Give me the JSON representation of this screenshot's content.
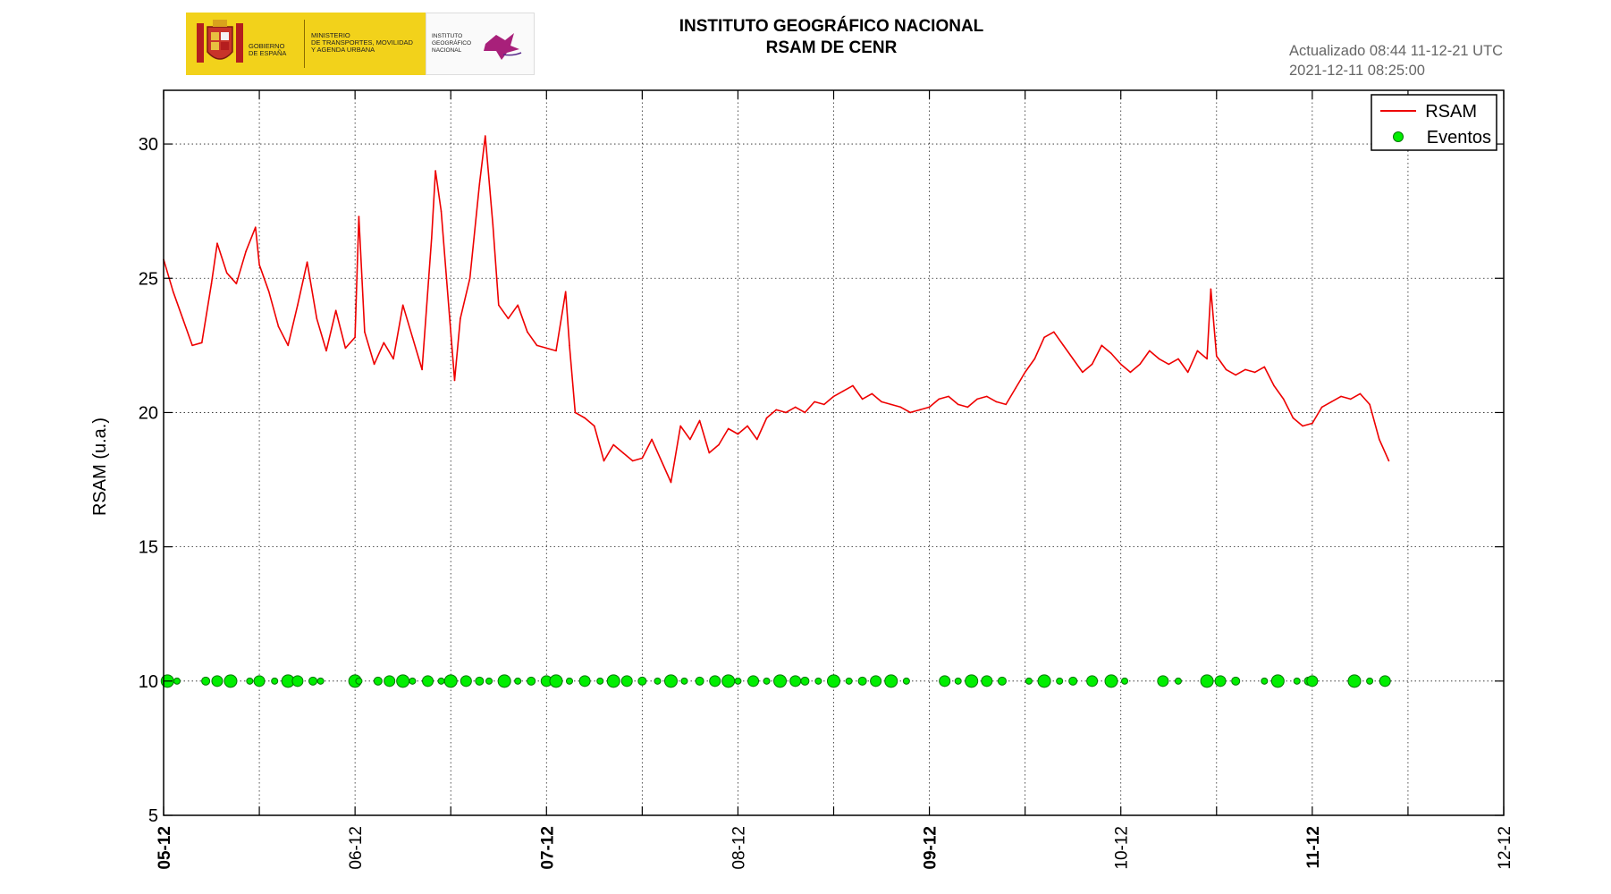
{
  "header": {
    "logo_gov_line1": "GOBIERNO",
    "logo_gov_line2": "DE ESPAÑA",
    "logo_ministry": "MINISTERIO\nDE TRANSPORTES, MOVILIDAD\nY AGENDA URBANA",
    "logo_ign": "INSTITUTO\nGEOGRÁFICO\nNACIONAL",
    "title_line1": "INSTITUTO GEOGRÁFICO NACIONAL",
    "title_line2": "RSAM DE CENR",
    "updated": "Actualizado 08:44 11-12-21 UTC",
    "timestamp": "2021-12-11 08:25:00"
  },
  "chart_data": {
    "type": "line",
    "title": "RSAM DE CENR",
    "ylabel": "RSAM (u.a.)",
    "xlabel": "",
    "ylim": [
      5,
      32
    ],
    "xlim": [
      0,
      7
    ],
    "x_tick_labels": [
      "05-12",
      "06-12",
      "07-12",
      "08-12",
      "09-12",
      "10-12",
      "11-12",
      "12-12"
    ],
    "bold_tick_labels": [
      "05-12",
      "07-12",
      "09-12",
      "11-12"
    ],
    "y_ticks": [
      5,
      10,
      15,
      20,
      25,
      30
    ],
    "grid": true,
    "legend": "top-right",
    "colors": {
      "rsam": "#ee0000",
      "eventos": "#00ee00",
      "eventos_edge": "#007700"
    },
    "series": [
      {
        "name": "RSAM",
        "style": "line",
        "x": [
          0,
          0.05,
          0.1,
          0.15,
          0.2,
          0.25,
          0.28,
          0.33,
          0.38,
          0.43,
          0.48,
          0.5,
          0.55,
          0.6,
          0.65,
          0.7,
          0.75,
          0.8,
          0.85,
          0.9,
          0.95,
          1.0,
          1.02,
          1.05,
          1.1,
          1.15,
          1.2,
          1.25,
          1.3,
          1.35,
          1.4,
          1.42,
          1.45,
          1.5,
          1.52,
          1.55,
          1.6,
          1.65,
          1.68,
          1.72,
          1.75,
          1.8,
          1.85,
          1.9,
          1.95,
          2.0,
          2.05,
          2.1,
          2.12,
          2.15,
          2.2,
          2.25,
          2.3,
          2.35,
          2.4,
          2.45,
          2.5,
          2.55,
          2.6,
          2.65,
          2.7,
          2.75,
          2.8,
          2.85,
          2.9,
          2.95,
          3.0,
          3.05,
          3.1,
          3.15,
          3.2,
          3.25,
          3.3,
          3.35,
          3.4,
          3.45,
          3.5,
          3.55,
          3.6,
          3.65,
          3.7,
          3.75,
          3.8,
          3.85,
          3.9,
          3.95,
          4.0,
          4.05,
          4.1,
          4.15,
          4.2,
          4.25,
          4.3,
          4.35,
          4.4,
          4.45,
          4.5,
          4.55,
          4.6,
          4.65,
          4.7,
          4.75,
          4.8,
          4.85,
          4.9,
          4.95,
          5.0,
          5.05,
          5.1,
          5.15,
          5.2,
          5.25,
          5.3,
          5.35,
          5.4,
          5.45,
          5.47,
          5.5,
          5.55,
          5.6,
          5.65,
          5.7,
          5.75,
          5.8,
          5.85,
          5.9,
          5.95,
          6.0,
          6.05,
          6.1,
          6.15,
          6.2,
          6.25,
          6.3,
          6.35,
          6.4
        ],
        "y": [
          25.7,
          24.5,
          23.5,
          22.5,
          22.6,
          24.8,
          26.3,
          25.2,
          24.8,
          26.0,
          26.9,
          25.5,
          24.5,
          23.2,
          22.5,
          24.0,
          25.6,
          23.5,
          22.3,
          23.8,
          22.4,
          22.8,
          27.3,
          23.0,
          21.8,
          22.6,
          22.0,
          24.0,
          22.8,
          21.6,
          26.5,
          29.0,
          27.5,
          23.0,
          21.2,
          23.5,
          25.0,
          28.5,
          30.3,
          27.0,
          24.0,
          23.5,
          24.0,
          23.0,
          22.5,
          22.4,
          22.3,
          24.5,
          22.5,
          20.0,
          19.8,
          19.5,
          18.2,
          18.8,
          18.5,
          18.2,
          18.3,
          19.0,
          18.2,
          17.4,
          19.5,
          19.0,
          19.7,
          18.5,
          18.8,
          19.4,
          19.2,
          19.5,
          19.0,
          19.8,
          20.1,
          20.0,
          20.2,
          20.0,
          20.4,
          20.3,
          20.6,
          20.8,
          21.0,
          20.5,
          20.7,
          20.4,
          20.3,
          20.2,
          20.0,
          20.1,
          20.2,
          20.5,
          20.6,
          20.3,
          20.2,
          20.5,
          20.6,
          20.4,
          20.3,
          20.9,
          21.5,
          22.0,
          22.8,
          23.0,
          22.5,
          22.0,
          21.5,
          21.8,
          22.5,
          22.2,
          21.8,
          21.5,
          21.8,
          22.3,
          22.0,
          21.8,
          22.0,
          21.5,
          22.3,
          22.0,
          24.6,
          22.1,
          21.6,
          21.4,
          21.6,
          21.5,
          21.7,
          21.0,
          20.5,
          19.8,
          19.5,
          19.6,
          20.2,
          20.4,
          20.6,
          20.5,
          20.7,
          20.3,
          19.0,
          18.2
        ]
      },
      {
        "name": "Eventos",
        "style": "scatter",
        "x": [
          0.02,
          0.07,
          0.22,
          0.28,
          0.35,
          0.45,
          0.5,
          0.58,
          0.65,
          0.7,
          0.78,
          0.82,
          1.0,
          1.02,
          1.12,
          1.18,
          1.25,
          1.3,
          1.38,
          1.45,
          1.5,
          1.58,
          1.65,
          1.7,
          1.78,
          1.85,
          1.92,
          2.0,
          2.05,
          2.12,
          2.2,
          2.28,
          2.35,
          2.42,
          2.5,
          2.58,
          2.65,
          2.72,
          2.8,
          2.88,
          2.95,
          3.0,
          3.08,
          3.15,
          3.22,
          3.3,
          3.35,
          3.42,
          3.5,
          3.58,
          3.65,
          3.72,
          3.8,
          3.88,
          4.08,
          4.15,
          4.22,
          4.3,
          4.38,
          4.52,
          4.6,
          4.68,
          4.75,
          4.85,
          4.95,
          5.02,
          5.22,
          5.3,
          5.45,
          5.52,
          5.6,
          5.75,
          5.82,
          5.92,
          5.98,
          6.0,
          6.22,
          6.3,
          6.38
        ],
        "y": [
          10,
          10,
          10,
          10,
          10,
          10,
          10,
          10,
          10,
          10,
          10,
          10,
          10,
          10,
          10,
          10,
          10,
          10,
          10,
          10,
          10,
          10,
          10,
          10,
          10,
          10,
          10,
          10,
          10,
          10,
          10,
          10,
          10,
          10,
          10,
          10,
          10,
          10,
          10,
          10,
          10,
          10,
          10,
          10,
          10,
          10,
          10,
          10,
          10,
          10,
          10,
          10,
          10,
          10,
          10,
          10,
          10,
          10,
          10,
          10,
          10,
          10,
          10,
          10,
          10,
          10,
          10,
          10,
          10,
          10,
          10,
          10,
          10,
          10,
          10,
          10,
          10,
          10,
          10
        ]
      }
    ]
  }
}
